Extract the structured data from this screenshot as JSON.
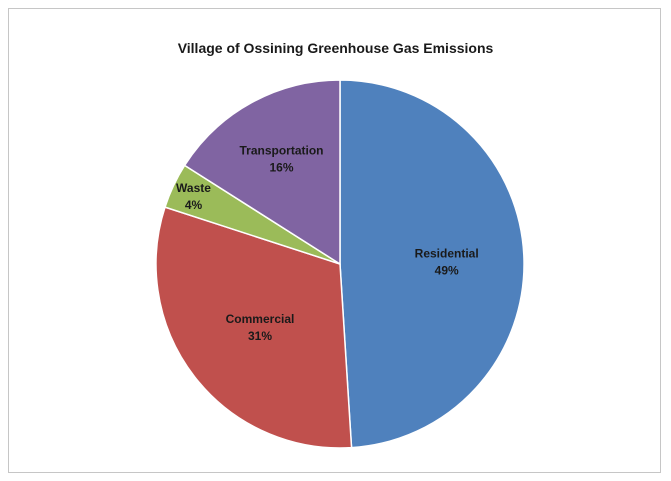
{
  "chart_data": {
    "type": "pie",
    "title": "Village  of Ossining Greenhouse Gas Emissions",
    "slices": [
      {
        "label": "Residential",
        "value": 49,
        "value_label": "49%",
        "color": "#4f81bd"
      },
      {
        "label": "Commercial",
        "value": 31,
        "value_label": "31%",
        "color": "#c0504d"
      },
      {
        "label": "Waste",
        "value": 4,
        "value_label": "4%",
        "color": "#9bbb59"
      },
      {
        "label": "Transportation",
        "value": 16,
        "value_label": "16%",
        "color": "#8064a2"
      }
    ],
    "start": "12 o'clock",
    "direction": "clockwise",
    "legend": "none"
  }
}
